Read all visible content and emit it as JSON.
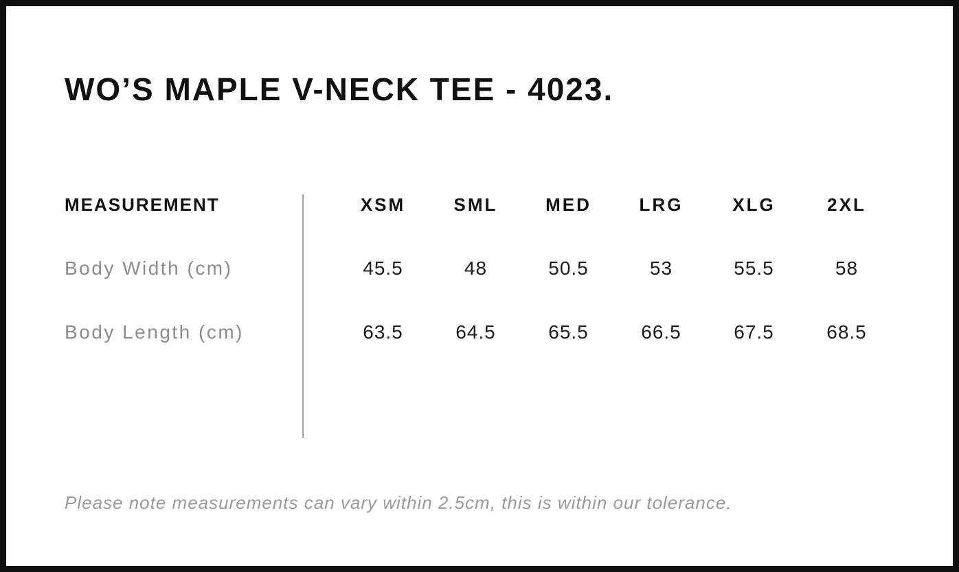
{
  "page": {
    "title": "WO’S MAPLE V-NECK TEE - 4023.",
    "note": "Please note measurements can vary within 2.5cm, this is within our tolerance."
  },
  "size_chart": {
    "header_label": "MEASUREMENT",
    "sizes": [
      "XSM",
      "SML",
      "MED",
      "LRG",
      "XLG",
      "2XL"
    ],
    "rows": [
      {
        "label": "Body Width (cm)",
        "values": [
          "45.5",
          "48",
          "50.5",
          "53",
          "55.5",
          "58"
        ]
      },
      {
        "label": "Body Length (cm)",
        "values": [
          "63.5",
          "64.5",
          "65.5",
          "66.5",
          "67.5",
          "68.5"
        ]
      }
    ],
    "tolerance_cm": "2.5"
  },
  "colors": {
    "frame_border": "#101010",
    "heading_text": "#111111",
    "value_text": "#1c1c1c",
    "muted_text": "#8d8d8d",
    "note_text": "#9a9a9a",
    "divider": "#a3a3a3",
    "background": "#ffffff"
  }
}
